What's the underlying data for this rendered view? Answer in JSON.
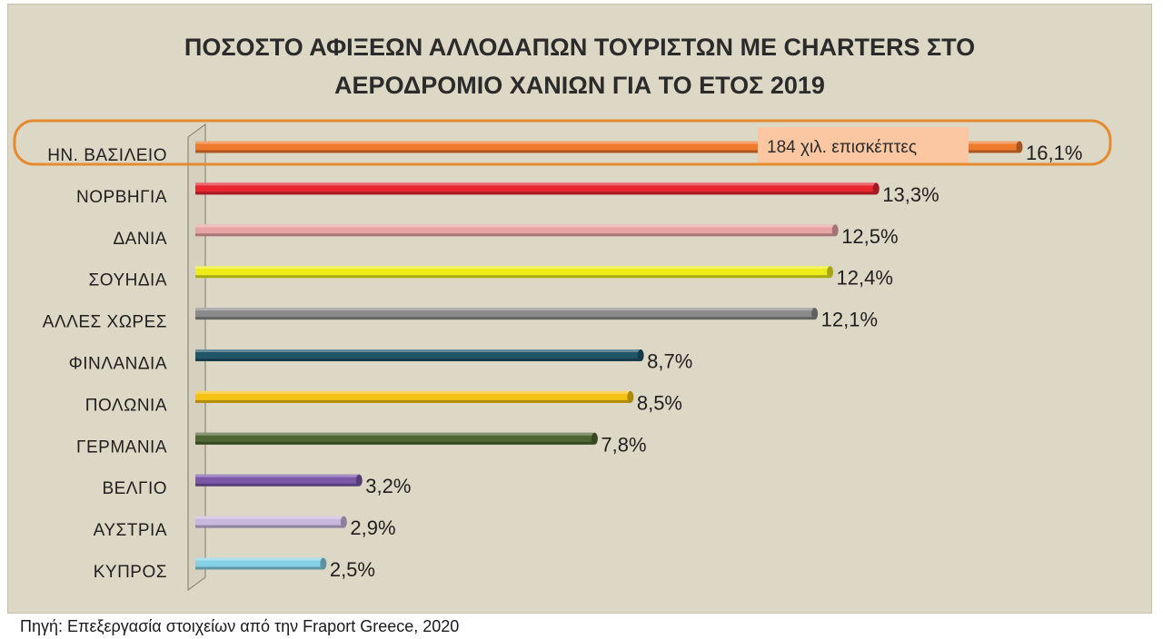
{
  "chart_data": {
    "type": "bar",
    "orientation": "horizontal",
    "title_lines": [
      "ΠΟΣΟΣΤΟ ΑΦΙΞΕΩΝ ΑΛΛΟΔΑΠΩΝ ΤΟΥΡΙΣΤΩΝ ΜΕ CHARTERS ΣΤΟ",
      "ΑΕΡΟΔΡΟΜΙΟ ΧΑΝΙΩΝ ΓΙΑ ΤΟ ΕΤΟΣ 2019"
    ],
    "categories": [
      "ΗΝ. ΒΑΣΙΛΕΙΟ",
      "ΝΟΡΒΗΓΙΑ",
      "ΔΑΝΙΑ",
      "ΣΟΥΗΔΙΑ",
      "ΑΛΛΕΣ ΧΩΡΕΣ",
      "ΦΙΝΛΑΝΔΙΑ",
      "ΠΟΛΩΝΙΑ",
      "ΓΕΡΜΑΝΙΑ",
      "ΒΕΛΓΙΟ",
      "ΑΥΣΤΡΙΑ",
      "ΚΥΠΡΟΣ"
    ],
    "values": [
      16.1,
      13.3,
      12.5,
      12.4,
      12.1,
      8.7,
      8.5,
      7.8,
      3.2,
      2.9,
      2.5
    ],
    "value_labels": [
      "16,1%",
      "13,3%",
      "12,5%",
      "12,4%",
      "12,1%",
      "8,7%",
      "8,5%",
      "7,8%",
      "3,2%",
      "2,9%",
      "2,5%"
    ],
    "colors": [
      "#ee7a2e",
      "#e8262f",
      "#e8a4a4",
      "#ecec1a",
      "#8a8a8a",
      "#1f5566",
      "#f5c213",
      "#4d6531",
      "#7b57a8",
      "#c8b8de",
      "#86d0e6"
    ],
    "xlim": [
      0,
      16.1
    ],
    "grid": false,
    "legend": "none",
    "highlight": {
      "category_index": 0,
      "annotation": "184 χιλ. επισκέπτες",
      "annotation_bg": "#fbc7a3",
      "outline_color": "#e58b2f"
    }
  },
  "source_note": "Πηγή: Επεξεργασία στοιχείων από την Fraport Greece, 2020"
}
